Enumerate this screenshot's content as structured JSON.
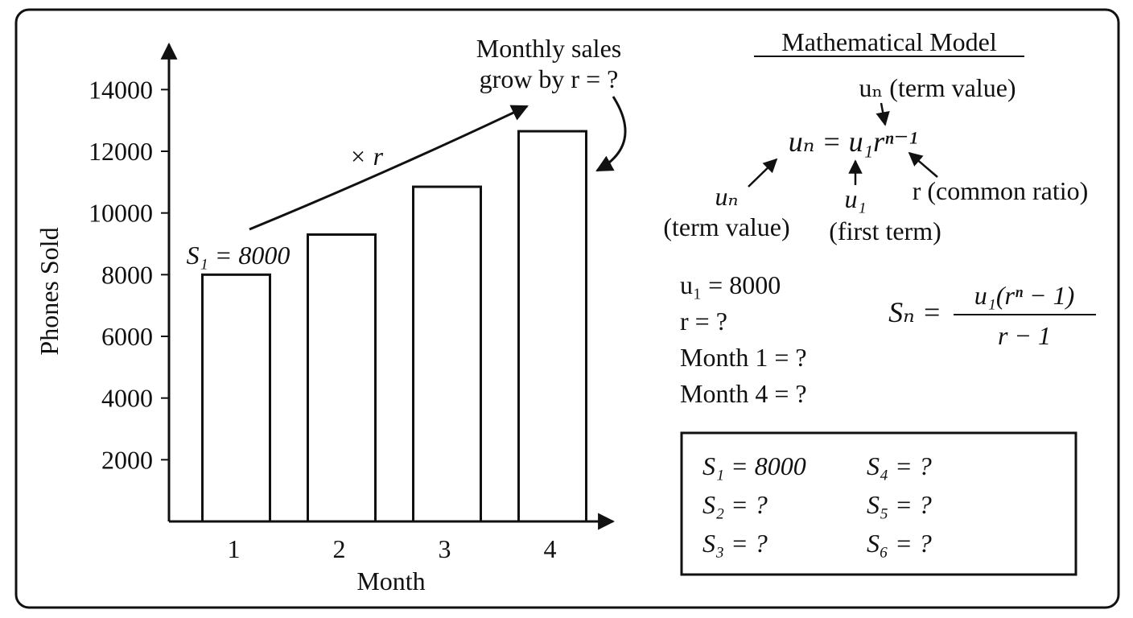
{
  "chart_data": {
    "type": "bar",
    "x_label": "Month",
    "y_label": "Phones Sold",
    "categories": [
      "1",
      "2",
      "3",
      "4"
    ],
    "values": [
      8000,
      9300,
      10850,
      12650
    ],
    "color": "#ffffff",
    "ylim": [
      0,
      15000
    ],
    "yticks": [
      2000,
      4000,
      6000,
      8000,
      10000,
      12000,
      14000
    ],
    "grid": false,
    "annotations": {
      "first": "S₁ = 8000",
      "ratio": "× r",
      "growth": [
        "Monthly sales",
        "grow by r = ?"
      ]
    }
  },
  "model": {
    "title": "Mathematical Model",
    "formula": "uₙ = u₁rⁿ⁻¹",
    "labels": {
      "top": "uₙ (term value)",
      "left": [
        "uₙ",
        "(term value)"
      ],
      "middle": [
        "u₁",
        "(first term)"
      ],
      "right": "r (common ratio)"
    },
    "givens": [
      "u₁ = 8000",
      "r = ?",
      "Month 1 = ?",
      "Month 4 = ?"
    ],
    "sum_formula": {
      "lhs": "Sₙ =",
      "numerator": "u₁(rⁿ − 1)",
      "denominator": "r − 1"
    },
    "sums": [
      "S₁ = 8000",
      "S₂ = ?",
      "S₃ = ?",
      "S₄ = ?",
      "S₅ = ?",
      "S₆ = ?"
    ]
  }
}
